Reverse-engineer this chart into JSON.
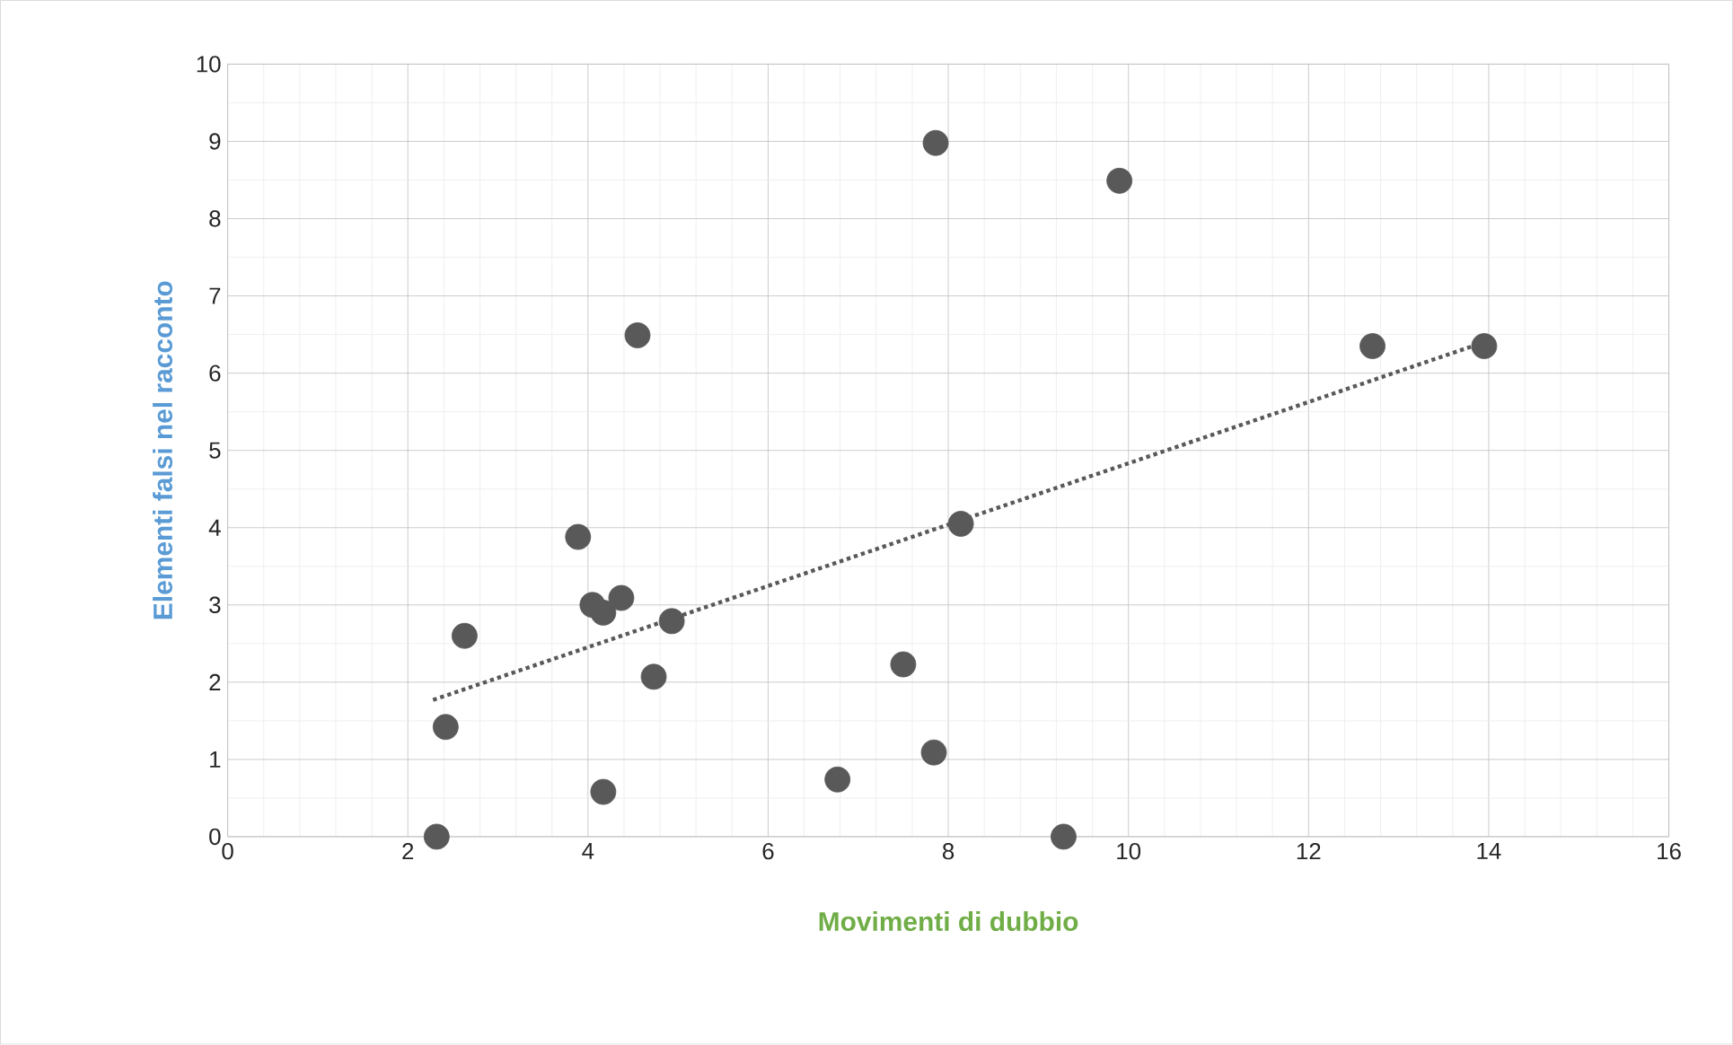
{
  "chart_data": {
    "type": "scatter",
    "xlabel": "Movimenti di dubbio",
    "ylabel": "Elementi falsi nel racconto",
    "xlim": [
      0,
      16
    ],
    "xticks": [
      0,
      2,
      4,
      6,
      8,
      10,
      12,
      14,
      16
    ],
    "ylim": [
      0,
      10
    ],
    "yticks": [
      0,
      1,
      2,
      3,
      4,
      5,
      6,
      7,
      8,
      9,
      10
    ],
    "grid": true,
    "series": [
      {
        "color": "#595959",
        "marker": "circle",
        "x": [
          2.32,
          2.42,
          2.63,
          3.89,
          4.05,
          4.17,
          4.17,
          4.37,
          4.55,
          4.73,
          4.93,
          6.77,
          7.5,
          7.84,
          7.86,
          8.14,
          9.28,
          9.9,
          12.71,
          13.95
        ],
        "values": [
          0,
          1.42,
          2.6,
          3.88,
          3.0,
          2.9,
          0.58,
          3.09,
          6.49,
          2.07,
          2.79,
          0.74,
          2.23,
          1.09,
          8.98,
          4.05,
          0,
          8.49,
          6.35,
          6.35
        ]
      },
      {
        "type": "line",
        "color": "#595959",
        "marker": "none",
        "line_style": "dotted",
        "x": [
          2.28,
          13.95
        ],
        "values": [
          1.77,
          6.4
        ]
      }
    ]
  }
}
